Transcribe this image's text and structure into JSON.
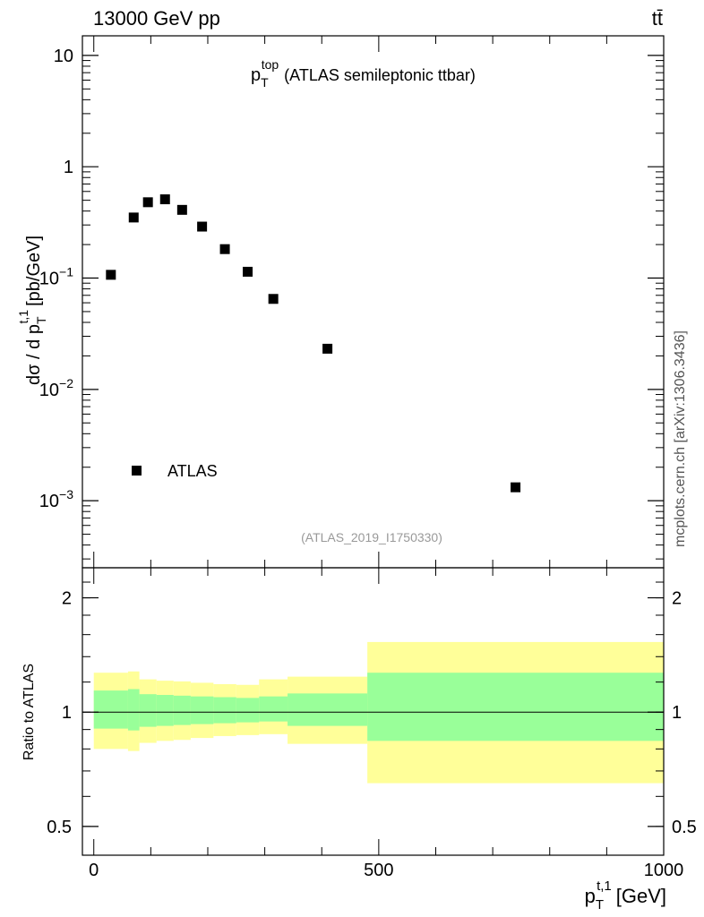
{
  "header": {
    "left_label": "13000 GeV pp",
    "right_label": "tt̄"
  },
  "side_label": "mcplots.cern.ch [arXiv:1306.3436]",
  "analysis_label": "(ATLAS_2019_I1750330)",
  "colors": {
    "band_outer": "#ffff99",
    "band_inner": "#99ff99",
    "markers": "#000000",
    "analysis_label": "#999999",
    "side_label": "#555555"
  },
  "chart_data": [
    {
      "type": "scatter",
      "title": {
        "main": "p",
        "sup": "top",
        "sub": "T",
        "rest": "(ATLAS semileptonic ttbar)"
      },
      "ylabel": {
        "main": "dσ / d p",
        "sup": "t,1",
        "sub": "T",
        "unit": "[pb/GeV]"
      },
      "yscale": "log",
      "ylim": [
        0.00025,
        15
      ],
      "yticks": [
        {
          "value": 0.001,
          "base": "10",
          "exp": "−3"
        },
        {
          "value": 0.01,
          "base": "10",
          "exp": "−2"
        },
        {
          "value": 0.1,
          "base": "10",
          "exp": "−1"
        },
        {
          "value": 1,
          "label": "1"
        },
        {
          "value": 10,
          "label": "10"
        }
      ],
      "xlim": [
        -20,
        1000
      ],
      "legend": {
        "label": "ATLAS",
        "position": "bottom-left"
      },
      "series": [
        {
          "name": "ATLAS",
          "marker": "square",
          "x": [
            30,
            70,
            95,
            125,
            155,
            190,
            230,
            270,
            315,
            410,
            740
          ],
          "y": [
            0.107,
            0.35,
            0.48,
            0.51,
            0.41,
            0.29,
            0.182,
            0.114,
            0.065,
            0.0232,
            0.00132
          ]
        }
      ]
    },
    {
      "type": "area",
      "ylabel": "Ratio to ATLAS",
      "ylim": [
        0.42,
        2.4
      ],
      "yscale": "log",
      "yticks": [
        0.5,
        1,
        2
      ],
      "xlim": [
        -20,
        1000
      ],
      "xticks": [
        0,
        500,
        1000
      ],
      "xlabel": {
        "main": "p",
        "sup": "t,1",
        "sub": "T",
        "unit": "[GeV]"
      },
      "reference_line": 1,
      "bins": [
        0,
        60,
        80,
        110,
        140,
        170,
        210,
        250,
        290,
        340,
        480,
        1000
      ],
      "outer_band": {
        "lower": [
          0.8,
          0.79,
          0.83,
          0.84,
          0.845,
          0.855,
          0.865,
          0.87,
          0.875,
          0.825,
          0.65
        ],
        "upper": [
          1.27,
          1.28,
          1.22,
          1.21,
          1.205,
          1.195,
          1.185,
          1.18,
          1.22,
          1.24,
          1.53
        ]
      },
      "inner_band": {
        "lower": [
          0.905,
          0.895,
          0.915,
          0.92,
          0.925,
          0.93,
          0.935,
          0.94,
          0.945,
          0.92,
          0.84
        ],
        "upper": [
          1.14,
          1.15,
          1.115,
          1.11,
          1.105,
          1.1,
          1.095,
          1.09,
          1.1,
          1.12,
          1.27
        ]
      }
    }
  ]
}
